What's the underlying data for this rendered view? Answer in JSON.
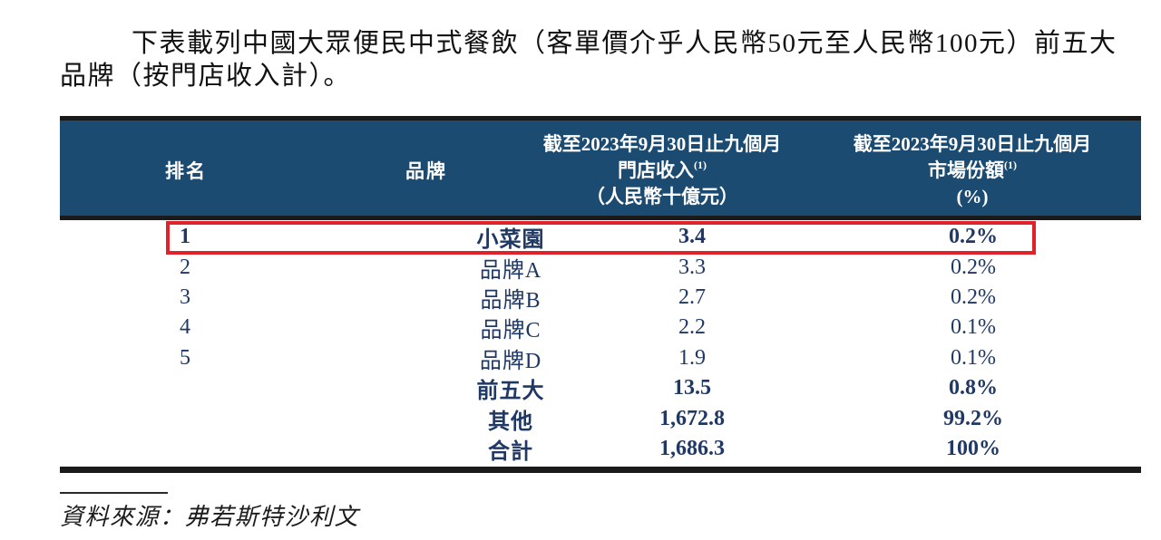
{
  "intro": {
    "line1": "下表載列中國大眾便民中式餐飲（客單價介乎人民幣50元至人民幣100元）前五大",
    "line2": "品牌（按門店收入計）。"
  },
  "table": {
    "headers": {
      "rank": "排名",
      "brand": "品牌",
      "revenue": {
        "period": "截至2023年9月30日止九個月",
        "label": "門店收入",
        "note": "(1)",
        "unit": "（人民幣十億元）"
      },
      "share": {
        "period": "截至2023年9月30日止九個月",
        "label": "市場份額",
        "note": "(1)",
        "unit": "(%)"
      }
    },
    "rows": [
      {
        "rank": "1",
        "brand": "小菜園",
        "revenue": "3.4",
        "share": "0.2%",
        "bold": true,
        "highlighted": true
      },
      {
        "rank": "2",
        "brand": "品牌A",
        "revenue": "3.3",
        "share": "0.2%",
        "bold": false,
        "highlighted": false
      },
      {
        "rank": "3",
        "brand": "品牌B",
        "revenue": "2.7",
        "share": "0.2%",
        "bold": false,
        "highlighted": false
      },
      {
        "rank": "4",
        "brand": "品牌C",
        "revenue": "2.2",
        "share": "0.1%",
        "bold": false,
        "highlighted": false
      },
      {
        "rank": "5",
        "brand": "品牌D",
        "revenue": "1.9",
        "share": "0.1%",
        "bold": false,
        "highlighted": false
      },
      {
        "rank": "",
        "brand": "前五大",
        "revenue": "13.5",
        "share": "0.8%",
        "bold": true,
        "highlighted": false
      },
      {
        "rank": "",
        "brand": "其他",
        "revenue": "1,672.8",
        "share": "99.2%",
        "bold": true,
        "highlighted": false
      },
      {
        "rank": "",
        "brand": "合計",
        "revenue": "1,686.3",
        "share": "100%",
        "bold": true,
        "highlighted": false
      }
    ]
  },
  "footer": {
    "source": "資料來源：弗若斯特沙利文"
  },
  "colors": {
    "header_bg": "#1c4b72",
    "header_text": "#ffffff",
    "data_text": "#1f3864",
    "highlight_border": "#e0232b",
    "border_black": "#1a1a1a"
  }
}
